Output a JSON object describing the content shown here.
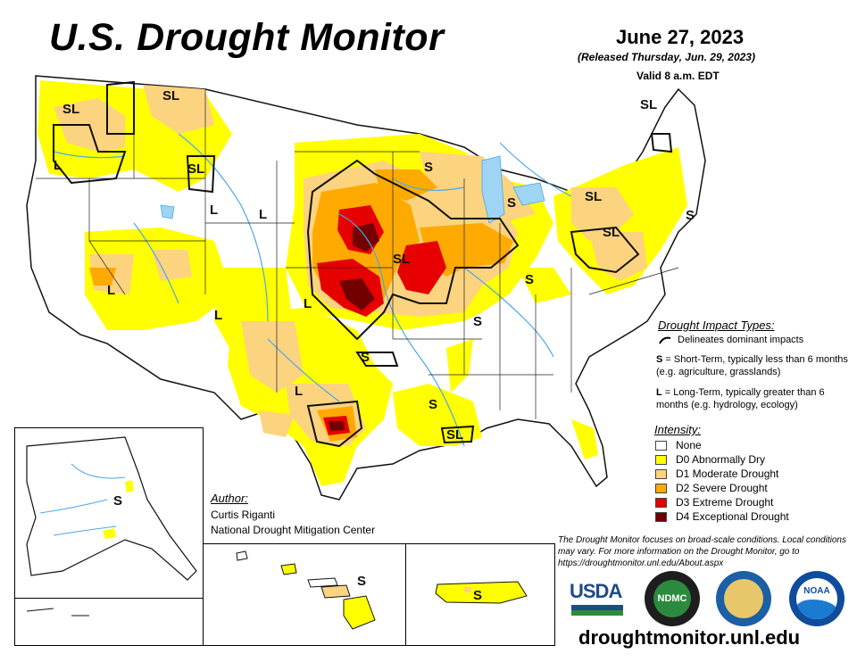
{
  "header": {
    "title": "U.S. Drought Monitor",
    "date": "June 27, 2023",
    "released": "(Released Thursday, Jun. 29, 2023)",
    "valid": "Valid 8 a.m. EDT"
  },
  "impact_types": {
    "title": "Drought Impact Types:",
    "line_label": "Delineates dominant impacts",
    "short_term_code": "S",
    "short_term_text": " = Short-Term, typically less than 6 months (e.g. agriculture, grasslands)",
    "long_term_code": "L",
    "long_term_text": " = Long-Term, typically greater than 6 months (e.g. hydrology, ecology)"
  },
  "intensity": {
    "title": "Intensity:",
    "levels": [
      {
        "label": "None",
        "color": "#ffffff"
      },
      {
        "label": "D0 Abnormally Dry",
        "color": "#ffff00"
      },
      {
        "label": "D1 Moderate Drought",
        "color": "#fcd37f"
      },
      {
        "label": "D2 Severe Drought",
        "color": "#ffaa00"
      },
      {
        "label": "D3 Extreme Drought",
        "color": "#e60000"
      },
      {
        "label": "D4 Exceptional Drought",
        "color": "#730000"
      }
    ]
  },
  "author": {
    "heading": "Author:",
    "name": "Curtis Riganti",
    "organization": "National Drought Mitigation Center"
  },
  "disclaimer": "The Drought Monitor focuses on broad-scale conditions. Local conditions may vary. For more information on the Drought Monitor, go to https://droughtmonitor.unl.edu/About.aspx",
  "map_labels": {
    "sl": "SL",
    "s": "S",
    "l": "L"
  },
  "logos": {
    "usda": "USDA",
    "ndmc": "NDMC",
    "noaa": "NOAA"
  },
  "url": "droughtmonitor.unl.edu"
}
